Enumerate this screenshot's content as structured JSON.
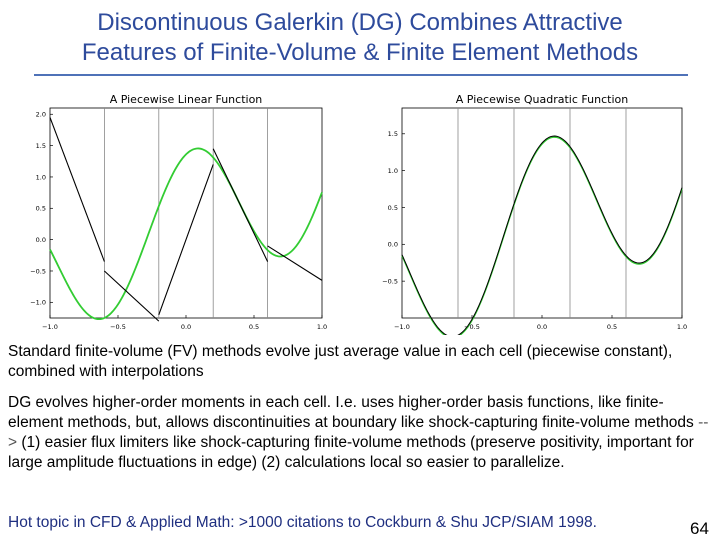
{
  "slide": {
    "title_line1": "Discontinuous Galerkin (DG) Combines Attractive",
    "title_line2": "Features of Finite-Volume & Finite Element Methods",
    "para1": "Standard finite-volume (FV) methods evolve just average value in each cell (piecewise constant), combined with interpolations",
    "para2_a": "DG evolves higher-order moments in each cell.  I.e. uses higher-order basis functions, like finite-element methods, but, allows discontinuities at boundary like shock-capturing finite-volume methods ",
    "para2_arrow": "-->",
    "para2_b": " (1)  easier flux limiters like shock-capturing finite-volume methods (preserve positivity, important for large amplitude fluctuations in edge) (2) calculations local so easier to parallelize.",
    "footer": "Hot topic in CFD & Applied Math:  >1000 citations to Cockburn & Shu JCP/SIAM 1998.",
    "page_number": "64"
  },
  "chart_data": [
    {
      "type": "line",
      "title": "A Piecewise Linear Function",
      "xlim": [
        -1.0,
        1.0
      ],
      "ylim": [
        -1.25,
        2.1
      ],
      "xticks": [
        "−1.0",
        "−0.5",
        "0.0",
        "0.5",
        "1.0"
      ],
      "yticks": [
        "2.0",
        "1.5",
        "1.0",
        "0.5",
        "0.0",
        "−0.5",
        "−1.0"
      ],
      "cell_boundaries": [
        -0.6,
        -0.2,
        0.2,
        0.6
      ],
      "colors": {
        "exact": "#33cc33",
        "approx": "#000000"
      },
      "segments": [
        {
          "x": [
            -1.0,
            -0.6
          ],
          "y": [
            1.95,
            -0.35
          ]
        },
        {
          "x": [
            -0.6,
            -0.2
          ],
          "y": [
            -0.5,
            -1.3
          ]
        },
        {
          "x": [
            -0.2,
            0.2
          ],
          "y": [
            -1.2,
            1.2
          ]
        },
        {
          "x": [
            0.2,
            0.6
          ],
          "y": [
            1.45,
            -0.35
          ]
        },
        {
          "x": [
            0.6,
            1.0
          ],
          "y": [
            -0.1,
            -0.65
          ]
        }
      ]
    },
    {
      "type": "line",
      "title": "A Piecewise Quadratic Function",
      "xlim": [
        -1.0,
        1.0
      ],
      "ylim": [
        -1.0,
        1.85
      ],
      "xticks": [
        "−1.0",
        "−0.5",
        "0.0",
        "0.5",
        "1.0"
      ],
      "yticks": [
        "1.5",
        "1.0",
        "0.5",
        "0.0",
        "−0.5"
      ],
      "cell_boundaries": [
        -0.6,
        -0.2,
        0.2,
        0.6
      ],
      "colors": {
        "exact": "#33cc33",
        "approx": "#000000"
      }
    }
  ]
}
